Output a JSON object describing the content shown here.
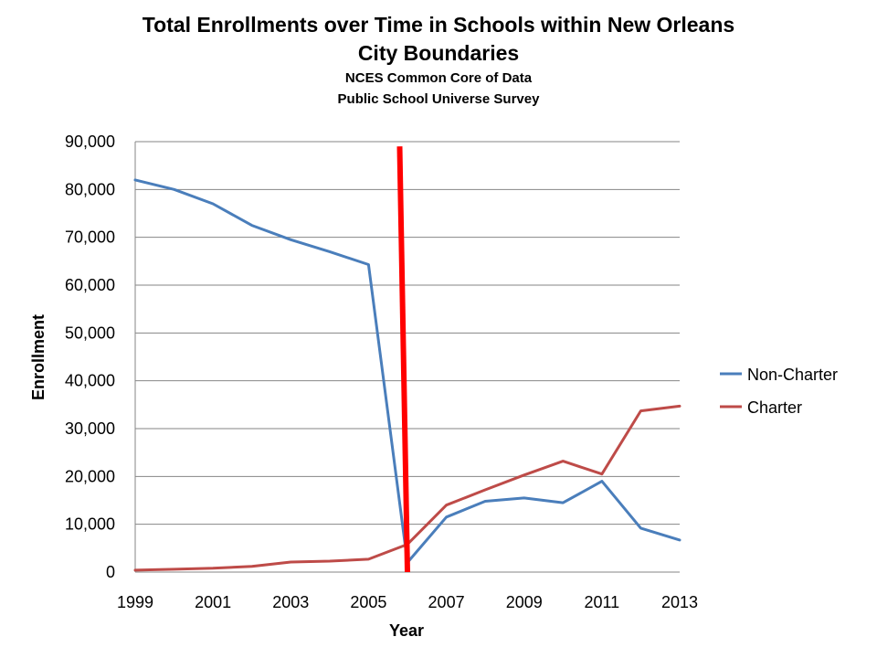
{
  "chart_data": {
    "type": "line",
    "title": "Total Enrollments over Time in Schools within New Orleans City Boundaries",
    "subtitle_lines": [
      "NCES Common Core of Data",
      "Public School Universe Survey"
    ],
    "xlabel": "Year",
    "ylabel": "Enrollment",
    "x": [
      1999,
      2000,
      2001,
      2002,
      2003,
      2004,
      2005,
      2006,
      2007,
      2008,
      2009,
      2010,
      2011,
      2012,
      2013
    ],
    "x_tick_labels": [
      "1999",
      "2001",
      "2003",
      "2005",
      "2007",
      "2009",
      "2011",
      "2013"
    ],
    "y_tick_labels": [
      "0",
      "10,000",
      "20,000",
      "30,000",
      "40,000",
      "50,000",
      "60,000",
      "70,000",
      "80,000",
      "90,000"
    ],
    "ylim": [
      0,
      90000
    ],
    "xlim": [
      1999,
      2013
    ],
    "grid": "horizontal",
    "legend_position": "right",
    "series": [
      {
        "name": "Non-Charter",
        "color": "#4a7ebb",
        "values": [
          82000,
          80000,
          77000,
          72500,
          69500,
          67000,
          64300,
          2000,
          11500,
          14800,
          15500,
          14500,
          19000,
          9200,
          6700
        ]
      },
      {
        "name": "Charter",
        "color": "#be4b48",
        "values": [
          400,
          600,
          800,
          1200,
          2100,
          2300,
          2700,
          5800,
          14000,
          17200,
          20300,
          23200,
          20500,
          33700,
          34700
        ]
      }
    ],
    "annotations": [
      {
        "type": "vertical-line",
        "color": "#ff0000",
        "x_top": 2005.8,
        "y_top": 89000,
        "x_bottom": 2006.0,
        "y_bottom": 0
      }
    ]
  }
}
